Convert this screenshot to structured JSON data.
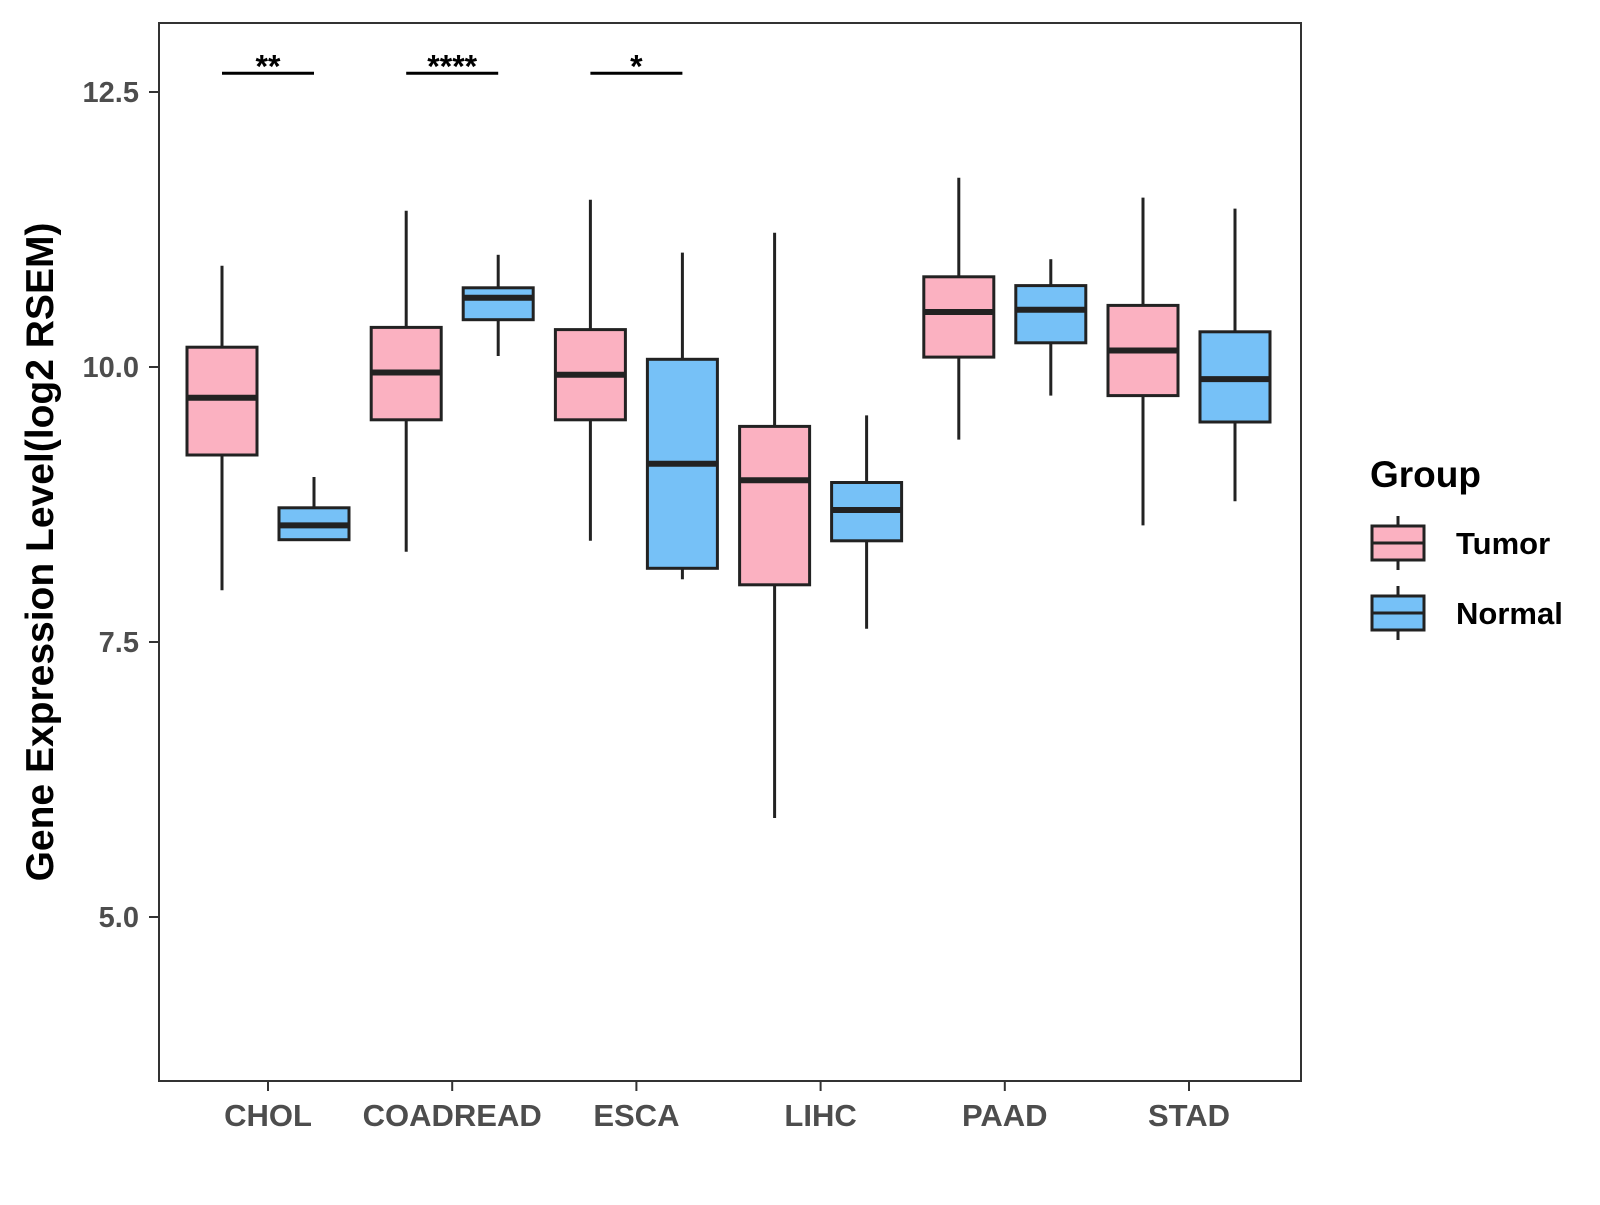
{
  "chart_data": {
    "type": "boxplot",
    "title": "",
    "xlabel": "",
    "ylabel": "Gene Expression Level(log2 RSEM)",
    "ylim": [
      3.6,
      13.1
    ],
    "yticks": [
      5.0,
      7.5,
      10.0,
      12.5
    ],
    "ytick_labels": [
      "5.0",
      "7.5",
      "10.0",
      "12.5"
    ],
    "grid": false,
    "categories": [
      "CHOL",
      "COADREAD",
      "ESCA",
      "LIHC",
      "PAAD",
      "STAD"
    ],
    "legend": {
      "title": "Group",
      "position": "right",
      "entries": [
        {
          "name": "Tumor",
          "color": "#FBB1C1"
        },
        {
          "name": "Normal",
          "color": "#76C1F7"
        }
      ]
    },
    "series": [
      {
        "name": "Tumor",
        "color": "#FBB1C1",
        "boxes": [
          {
            "category": "CHOL",
            "whisker_low": 7.97,
            "q1": 9.2,
            "median": 9.72,
            "q3": 10.18,
            "whisker_high": 10.92
          },
          {
            "category": "COADREAD",
            "whisker_low": 8.32,
            "q1": 9.52,
            "median": 9.95,
            "q3": 10.36,
            "whisker_high": 11.42
          },
          {
            "category": "ESCA",
            "whisker_low": 8.42,
            "q1": 9.52,
            "median": 9.93,
            "q3": 10.34,
            "whisker_high": 11.52
          },
          {
            "category": "LIHC",
            "whisker_low": 5.9,
            "q1": 8.02,
            "median": 8.97,
            "q3": 9.46,
            "whisker_high": 11.22
          },
          {
            "category": "PAAD",
            "whisker_low": 9.34,
            "q1": 10.09,
            "median": 10.5,
            "q3": 10.82,
            "whisker_high": 11.72
          },
          {
            "category": "STAD",
            "whisker_low": 8.56,
            "q1": 9.74,
            "median": 10.15,
            "q3": 10.56,
            "whisker_high": 11.54
          }
        ]
      },
      {
        "name": "Normal",
        "color": "#76C1F7",
        "boxes": [
          {
            "category": "CHOL",
            "whisker_low": 8.43,
            "q1": 8.43,
            "median": 8.56,
            "q3": 8.72,
            "whisker_high": 9.0
          },
          {
            "category": "COADREAD",
            "whisker_low": 10.1,
            "q1": 10.43,
            "median": 10.63,
            "q3": 10.72,
            "whisker_high": 11.02
          },
          {
            "category": "ESCA",
            "whisker_low": 8.07,
            "q1": 8.17,
            "median": 9.12,
            "q3": 10.07,
            "whisker_high": 11.04
          },
          {
            "category": "LIHC",
            "whisker_low": 7.62,
            "q1": 8.42,
            "median": 8.7,
            "q3": 8.95,
            "whisker_high": 9.56
          },
          {
            "category": "PAAD",
            "whisker_low": 9.74,
            "q1": 10.22,
            "median": 10.52,
            "q3": 10.74,
            "whisker_high": 10.98
          },
          {
            "category": "STAD",
            "whisker_low": 8.78,
            "q1": 9.5,
            "median": 9.89,
            "q3": 10.32,
            "whisker_high": 11.44
          }
        ]
      }
    ],
    "significance": [
      {
        "category": "CHOL",
        "label": "**",
        "y": 12.67
      },
      {
        "category": "COADREAD",
        "label": "****",
        "y": 12.67
      },
      {
        "category": "ESCA",
        "label": "*",
        "y": 12.67
      }
    ],
    "box_border_color": "#222222"
  }
}
